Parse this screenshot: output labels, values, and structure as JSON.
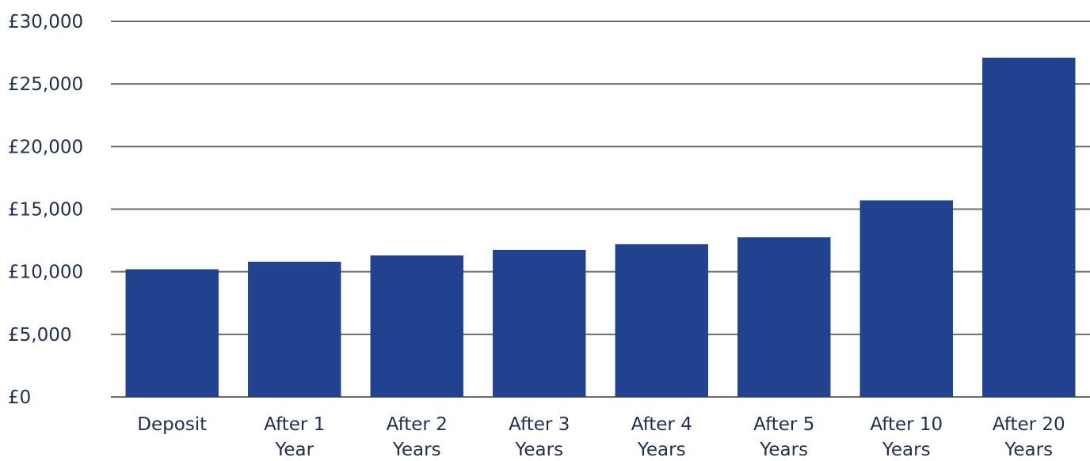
{
  "chart_data": {
    "type": "bar",
    "categories": [
      [
        "Deposit"
      ],
      [
        "After 1",
        "Year"
      ],
      [
        "After 2",
        "Years"
      ],
      [
        "After 3",
        "Years"
      ],
      [
        "After 4",
        "Years"
      ],
      [
        "After 5",
        "Years"
      ],
      [
        "After 10",
        "Years"
      ],
      [
        "After 20",
        "Years"
      ]
    ],
    "values": [
      10200,
      10800,
      11300,
      11750,
      12200,
      12750,
      15700,
      27100
    ],
    "title": "",
    "xlabel": "",
    "ylabel": "",
    "ylim": [
      0,
      30000
    ],
    "y_ticks": [
      "£0",
      "£5,000",
      "£10,000",
      "£15,000",
      "£20,000",
      "£25,000",
      "£30,000"
    ],
    "grid": true,
    "legend": "none",
    "colors": {
      "bar": "#21428f",
      "grid": "#6b6b6b",
      "text": "#1f2f4f"
    }
  }
}
